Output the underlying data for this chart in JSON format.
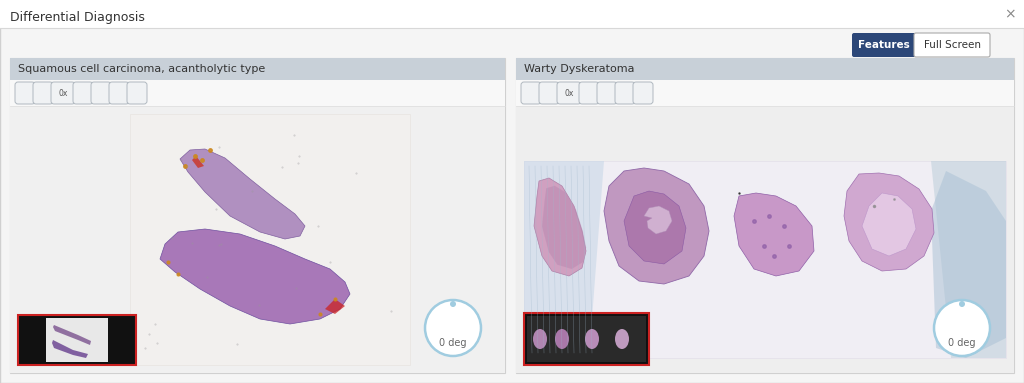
{
  "title": "Differential Diagnosis",
  "close_x": "×",
  "bg_color": "#f5f5f5",
  "panel_bg": "#ffffff",
  "header_bg": "#c8d0d8",
  "panel1_title": "Squamous cell carcinoma, acantholytic type",
  "panel2_title": "Warty Dyskeratoma",
  "btn_features_bg": "#2c4778",
  "btn_features_color": "#ffffff",
  "btn_features_label": "Features",
  "btn_fullscreen_bg": "#ffffff",
  "btn_fullscreen_color": "#333333",
  "btn_fullscreen_label": "Full Screen",
  "deg_label": "0 deg",
  "circle_edge_color": "#a0cce0",
  "title_fontsize": 9,
  "panel_title_fontsize": 8,
  "deg_fontsize": 7,
  "toolbar_icon_color": "#666666",
  "outer_border_color": "#d0d0d0",
  "separator_color": "#d8d8d8",
  "img1_bg": "#efefef",
  "img1_inner_bg": "#f8f8f8",
  "img2_bg": "#f0f0f0",
  "tissue_purple_light": "#c8a0c8",
  "tissue_purple_mid": "#a878b0",
  "tissue_purple_dark": "#8050a0",
  "tissue_pink": "#d8a0c8",
  "tissue_teal": "#b0c8d8",
  "thumb_bg": "#111111",
  "thumb_border": "#cc2222"
}
